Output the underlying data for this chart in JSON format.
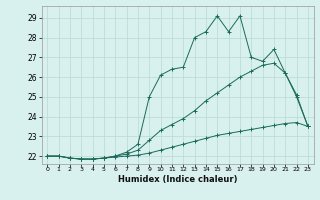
{
  "title": "",
  "xlabel": "Humidex (Indice chaleur)",
  "background_color": "#d8f0ee",
  "grid_color": "#b8d8d4",
  "line_color": "#1a6b5a",
  "xlim": [
    -0.5,
    23.5
  ],
  "ylim": [
    21.6,
    29.6
  ],
  "xticks": [
    0,
    1,
    2,
    3,
    4,
    5,
    6,
    7,
    8,
    9,
    10,
    11,
    12,
    13,
    14,
    15,
    16,
    17,
    18,
    19,
    20,
    21,
    22,
    23
  ],
  "yticks": [
    22,
    23,
    24,
    25,
    26,
    27,
    28,
    29
  ],
  "line1_y": [
    22.0,
    22.0,
    21.9,
    21.85,
    21.85,
    21.9,
    21.95,
    22.0,
    22.05,
    22.15,
    22.3,
    22.45,
    22.6,
    22.75,
    22.9,
    23.05,
    23.15,
    23.25,
    23.35,
    23.45,
    23.55,
    23.65,
    23.7,
    23.5
  ],
  "line2_y": [
    22.0,
    22.0,
    21.9,
    21.85,
    21.85,
    21.9,
    22.0,
    22.1,
    22.3,
    22.8,
    23.3,
    23.6,
    23.9,
    24.3,
    24.8,
    25.2,
    25.6,
    26.0,
    26.3,
    26.6,
    26.7,
    26.2,
    25.1,
    23.5
  ],
  "line3_y": [
    22.0,
    22.0,
    21.9,
    21.85,
    21.85,
    21.9,
    22.0,
    22.2,
    22.6,
    25.0,
    26.1,
    26.4,
    26.5,
    28.0,
    28.3,
    29.1,
    28.3,
    29.1,
    27.0,
    26.8,
    27.4,
    26.2,
    25.0,
    23.5
  ]
}
